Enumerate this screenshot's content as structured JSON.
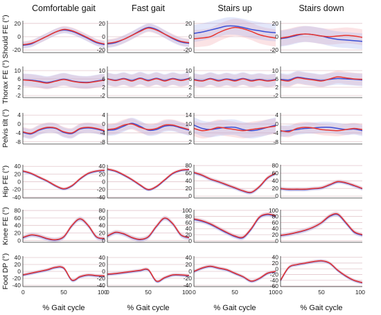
{
  "columns": [
    "Comfortable gait",
    "Fast gait",
    "Stairs up",
    "Stairs down"
  ],
  "rows": [
    "Should FE (°)",
    "Thorax FE (°)",
    "Pelvis tilt (°)",
    "Hip FE (°)",
    "Knee FE (°)",
    "Foot DP (°)"
  ],
  "xaxis_label": "% Gait cycle",
  "colors": {
    "series_a": "#e8352e",
    "series_b": "#3a4fd6",
    "band_a": "#f4a7ad",
    "band_b": "#a9b3f0",
    "grid": "#e2c6cc"
  },
  "chart_data": {
    "type": "line",
    "x_range": [
      0,
      100
    ],
    "x_ticks": [
      0,
      50,
      100
    ],
    "legend": "none",
    "grid": true,
    "panels": [
      {
        "row": 0,
        "col": 0,
        "yticks": [
          20,
          0,
          -20
        ],
        "ylim": [
          -24,
          24
        ],
        "x": [
          0,
          10,
          20,
          30,
          40,
          50,
          60,
          70,
          80,
          90,
          100
        ],
        "red": [
          -12,
          -10,
          -5,
          1,
          7,
          11,
          9,
          4,
          -2,
          -8,
          -11
        ],
        "blue": [
          -13,
          -11,
          -5,
          1,
          7,
          10,
          8,
          3,
          -3,
          -9,
          -12
        ],
        "sd": 5
      },
      {
        "row": 0,
        "col": 1,
        "yticks": [
          20,
          0,
          -20
        ],
        "ylim": [
          -24,
          24
        ],
        "x": [
          0,
          10,
          20,
          30,
          40,
          50,
          60,
          70,
          80,
          90,
          100
        ],
        "red": [
          -10,
          -8,
          -4,
          2,
          8,
          13,
          10,
          4,
          -2,
          -7,
          -9
        ],
        "blue": [
          -11,
          -9,
          -4,
          2,
          9,
          14,
          11,
          4,
          -3,
          -8,
          -10
        ],
        "sd": 6
      },
      {
        "row": 0,
        "col": 2,
        "yticks": [
          20,
          0,
          -20
        ],
        "ylim": [
          -24,
          24
        ],
        "x": [
          0,
          10,
          20,
          30,
          40,
          50,
          60,
          70,
          80,
          90,
          100
        ],
        "red": [
          -3,
          -2,
          0,
          6,
          11,
          14,
          12,
          8,
          3,
          0,
          -2
        ],
        "blue": [
          5,
          7,
          10,
          13,
          16,
          16,
          14,
          11,
          9,
          7,
          6
        ],
        "sd": 13
      },
      {
        "row": 0,
        "col": 3,
        "yticks": [
          20,
          0,
          -20
        ],
        "ylim": [
          -24,
          24
        ],
        "x": [
          0,
          10,
          20,
          30,
          40,
          50,
          60,
          70,
          80,
          90,
          100
        ],
        "red": [
          -2,
          0,
          3,
          4,
          3,
          1,
          0,
          1,
          2,
          1,
          -1
        ],
        "blue": [
          -3,
          -1,
          2,
          4,
          3,
          1,
          -2,
          -4,
          -5,
          -6,
          -7
        ],
        "sd": 12
      },
      {
        "row": 1,
        "col": 0,
        "yticks": [
          10,
          6,
          2,
          -2
        ],
        "ylim": [
          -3,
          12
        ],
        "x": [
          0,
          10,
          20,
          30,
          40,
          50,
          60,
          70,
          80,
          90,
          100
        ],
        "red": [
          5.5,
          5.2,
          4.6,
          4.0,
          4.9,
          5.7,
          4.9,
          4.3,
          4.2,
          4.8,
          5.4
        ],
        "blue": [
          5.6,
          5.4,
          4.9,
          4.3,
          5.1,
          5.9,
          5.1,
          4.5,
          4.4,
          5.0,
          5.6
        ],
        "sd": 3
      },
      {
        "row": 1,
        "col": 1,
        "yticks": [
          10,
          6,
          2,
          -2
        ],
        "ylim": [
          -3,
          12
        ],
        "x": [
          0,
          10,
          20,
          30,
          40,
          50,
          60,
          70,
          80,
          90,
          100
        ],
        "red": [
          6.0,
          5.2,
          6.0,
          5.0,
          6.2,
          5.1,
          6.1,
          5.0,
          6.0,
          5.2,
          6.1
        ],
        "blue": [
          6.1,
          5.4,
          6.2,
          5.3,
          6.4,
          5.4,
          6.3,
          5.3,
          6.2,
          5.5,
          6.3
        ],
        "sd": 3
      },
      {
        "row": 1,
        "col": 2,
        "yticks": [
          10,
          6,
          2,
          -2
        ],
        "ylim": [
          -3,
          12
        ],
        "x": [
          0,
          10,
          20,
          30,
          40,
          50,
          60,
          70,
          80,
          90,
          100
        ],
        "red": [
          5.5,
          5.0,
          6.0,
          5.0,
          5.8,
          5.0,
          6.0,
          5.0,
          5.6,
          5.0,
          5.5
        ],
        "blue": [
          5.8,
          5.2,
          6.2,
          5.3,
          6.0,
          5.4,
          6.2,
          5.3,
          5.8,
          5.2,
          5.7
        ],
        "sd": 3
      },
      {
        "row": 1,
        "col": 3,
        "yticks": [
          10,
          6,
          2,
          -2
        ],
        "ylim": [
          -3,
          12
        ],
        "x": [
          0,
          10,
          20,
          30,
          40,
          50,
          60,
          70,
          80,
          90,
          100
        ],
        "red": [
          5.5,
          5.0,
          6.5,
          6.0,
          5.5,
          5.0,
          6.0,
          7.0,
          6.5,
          6.0,
          5.8
        ],
        "blue": [
          5.8,
          5.5,
          6.8,
          6.3,
          5.8,
          5.3,
          5.8,
          6.2,
          6.0,
          5.8,
          5.5
        ],
        "sd": 3
      },
      {
        "row": 2,
        "col": 0,
        "yticks": [
          4,
          0,
          -4,
          -8
        ],
        "ylim": [
          -9,
          5
        ],
        "x": [
          0,
          10,
          20,
          30,
          40,
          50,
          60,
          70,
          80,
          90,
          100
        ],
        "red": [
          -3.5,
          -4.2,
          -2.5,
          -1.5,
          -1.8,
          -3.5,
          -4.0,
          -2.0,
          -1.5,
          -2.0,
          -3.0
        ],
        "blue": [
          -3.8,
          -4.5,
          -2.8,
          -1.8,
          -2.0,
          -3.8,
          -4.3,
          -2.3,
          -1.8,
          -2.3,
          -3.3
        ],
        "sd": 2.2
      },
      {
        "row": 2,
        "col": 1,
        "yticks": [
          4,
          0,
          -4,
          -8
        ],
        "ylim": [
          -9,
          5
        ],
        "x": [
          0,
          10,
          20,
          30,
          40,
          50,
          60,
          70,
          80,
          90,
          100
        ],
        "red": [
          -2.5,
          -2.0,
          -0.5,
          0.0,
          -1.5,
          -2.5,
          -2.0,
          -0.5,
          -0.5,
          -1.5,
          -2.5
        ],
        "blue": [
          -2.8,
          -2.5,
          -1.0,
          0.3,
          -1.0,
          -2.8,
          -2.5,
          -1.0,
          -0.8,
          -1.8,
          -2.8
        ],
        "sd": 2.5
      },
      {
        "row": 2,
        "col": 2,
        "yticks": [
          14,
          10,
          6,
          2
        ],
        "ylim": [
          1,
          15
        ],
        "x": [
          0,
          10,
          20,
          30,
          40,
          50,
          60,
          70,
          80,
          90,
          100
        ],
        "red": [
          8.0,
          7.0,
          7.5,
          8.5,
          8.0,
          7.5,
          7.0,
          7.5,
          8.0,
          8.5,
          9.0
        ],
        "blue": [
          9.5,
          8.0,
          7.5,
          8.0,
          8.5,
          8.5,
          7.5,
          7.0,
          7.5,
          8.5,
          9.5
        ],
        "sd": 3.5
      },
      {
        "row": 2,
        "col": 3,
        "yticks": [
          4,
          0,
          -4,
          -8
        ],
        "ylim": [
          -9,
          5
        ],
        "x": [
          0,
          10,
          20,
          30,
          40,
          50,
          60,
          70,
          80,
          90,
          100
        ],
        "red": [
          -3.0,
          -3.5,
          -2.0,
          -1.5,
          -1.8,
          -2.5,
          -2.8,
          -3.0,
          -2.5,
          -2.0,
          -2.5
        ],
        "blue": [
          -3.3,
          -3.0,
          -2.5,
          -2.0,
          -1.8,
          -1.5,
          -1.5,
          -2.0,
          -2.5,
          -2.3,
          -3.0
        ],
        "sd": 2.5
      },
      {
        "row": 3,
        "col": 0,
        "yticks": [
          40,
          20,
          0,
          -20,
          -40
        ],
        "ylim": [
          -42,
          44
        ],
        "x": [
          0,
          10,
          20,
          30,
          40,
          50,
          60,
          70,
          80,
          90,
          100
        ],
        "red": [
          28,
          22,
          12,
          2,
          -10,
          -18,
          -10,
          8,
          22,
          28,
          30
        ],
        "blue": [
          27,
          21,
          11,
          1,
          -11,
          -19,
          -11,
          7,
          21,
          27,
          29
        ],
        "sd": 4
      },
      {
        "row": 3,
        "col": 1,
        "yticks": [
          40,
          20,
          0,
          -20,
          -40
        ],
        "ylim": [
          -42,
          44
        ],
        "x": [
          0,
          10,
          20,
          30,
          40,
          50,
          60,
          70,
          80,
          90,
          100
        ],
        "red": [
          33,
          28,
          18,
          6,
          -8,
          -20,
          -12,
          5,
          22,
          30,
          32
        ],
        "blue": [
          32,
          27,
          17,
          5,
          -9,
          -21,
          -13,
          4,
          21,
          29,
          31
        ],
        "sd": 4
      },
      {
        "row": 3,
        "col": 2,
        "yticks": [
          80,
          60,
          40,
          20,
          0
        ],
        "ylim": [
          -5,
          82
        ],
        "x": [
          0,
          10,
          20,
          30,
          40,
          50,
          60,
          70,
          80,
          90,
          100
        ],
        "red": [
          62,
          55,
          45,
          38,
          30,
          22,
          14,
          10,
          25,
          48,
          60
        ],
        "blue": [
          61,
          54,
          44,
          37,
          29,
          21,
          13,
          9,
          24,
          47,
          59
        ],
        "sd": 5
      },
      {
        "row": 3,
        "col": 3,
        "yticks": [
          80,
          60,
          40,
          20,
          0
        ],
        "ylim": [
          -5,
          82
        ],
        "x": [
          0,
          10,
          20,
          30,
          40,
          50,
          60,
          70,
          80,
          90,
          100
        ],
        "red": [
          20,
          18,
          18,
          18,
          20,
          22,
          30,
          38,
          35,
          28,
          20
        ],
        "blue": [
          19,
          17,
          17,
          17,
          19,
          21,
          29,
          37,
          34,
          27,
          19
        ],
        "sd": 5
      },
      {
        "row": 4,
        "col": 0,
        "yticks": [
          80,
          60,
          40,
          20,
          0
        ],
        "ylim": [
          -5,
          82
        ],
        "x": [
          0,
          10,
          20,
          30,
          40,
          50,
          60,
          70,
          80,
          90,
          100
        ],
        "red": [
          8,
          15,
          12,
          5,
          2,
          10,
          40,
          58,
          40,
          10,
          5
        ],
        "blue": [
          7,
          14,
          11,
          4,
          1,
          9,
          39,
          57,
          39,
          9,
          4
        ],
        "sd": 6
      },
      {
        "row": 4,
        "col": 1,
        "yticks": [
          80,
          60,
          40,
          20,
          0
        ],
        "ylim": [
          -5,
          82
        ],
        "x": [
          0,
          10,
          20,
          30,
          40,
          50,
          60,
          70,
          80,
          90,
          100
        ],
        "red": [
          12,
          22,
          18,
          8,
          3,
          10,
          38,
          60,
          45,
          15,
          8
        ],
        "blue": [
          11,
          21,
          17,
          7,
          2,
          9,
          37,
          59,
          44,
          14,
          7
        ],
        "sd": 6
      },
      {
        "row": 4,
        "col": 2,
        "yticks": [
          100,
          80,
          60,
          40,
          20,
          0
        ],
        "ylim": [
          -5,
          102
        ],
        "x": [
          0,
          10,
          20,
          30,
          40,
          50,
          60,
          70,
          80,
          90,
          100
        ],
        "red": [
          72,
          66,
          56,
          42,
          28,
          16,
          12,
          40,
          78,
          88,
          82
        ],
        "blue": [
          70,
          64,
          54,
          40,
          26,
          14,
          10,
          38,
          76,
          86,
          80
        ],
        "sd": 7
      },
      {
        "row": 4,
        "col": 3,
        "yticks": [
          100,
          80,
          60,
          40,
          20,
          0
        ],
        "ylim": [
          -5,
          102
        ],
        "x": [
          0,
          10,
          20,
          30,
          40,
          50,
          60,
          70,
          80,
          90,
          100
        ],
        "red": [
          18,
          22,
          28,
          35,
          45,
          60,
          82,
          88,
          60,
          30,
          20
        ],
        "blue": [
          17,
          21,
          27,
          34,
          44,
          59,
          80,
          86,
          58,
          28,
          18
        ],
        "sd": 7
      },
      {
        "row": 5,
        "col": 0,
        "yticks": [
          40,
          20,
          0,
          -20,
          -40
        ],
        "ylim": [
          -44,
          44
        ],
        "x": [
          0,
          10,
          20,
          30,
          40,
          50,
          60,
          70,
          80,
          90,
          100
        ],
        "red": [
          -10,
          -5,
          0,
          5,
          12,
          10,
          -25,
          -15,
          -10,
          -12,
          -13
        ],
        "blue": [
          -11,
          -6,
          -1,
          4,
          11,
          9,
          -26,
          -16,
          -11,
          -13,
          -14
        ],
        "sd": 5
      },
      {
        "row": 5,
        "col": 1,
        "yticks": [
          40,
          20,
          0,
          -20,
          -40
        ],
        "ylim": [
          -44,
          44
        ],
        "x": [
          0,
          10,
          20,
          30,
          40,
          50,
          60,
          70,
          80,
          90,
          100
        ],
        "red": [
          -8,
          -6,
          -3,
          0,
          3,
          5,
          -28,
          -18,
          -10,
          -10,
          -12
        ],
        "blue": [
          -9,
          -7,
          -4,
          -1,
          2,
          4,
          -29,
          -19,
          -11,
          -11,
          -13
        ],
        "sd": 5
      },
      {
        "row": 5,
        "col": 2,
        "yticks": [
          40,
          20,
          0,
          -20,
          -40
        ],
        "ylim": [
          -44,
          44
        ],
        "x": [
          0,
          10,
          20,
          30,
          40,
          50,
          60,
          70,
          80,
          90,
          100
        ],
        "red": [
          0,
          10,
          15,
          10,
          5,
          -5,
          -15,
          -28,
          -20,
          -5,
          0
        ],
        "blue": [
          -1,
          9,
          14,
          9,
          4,
          -6,
          -16,
          -29,
          -21,
          -6,
          -1
        ],
        "sd": 5
      },
      {
        "row": 5,
        "col": 3,
        "yticks": [
          40,
          20,
          0,
          -20,
          -40,
          -60
        ],
        "ylim": [
          -62,
          44
        ],
        "x": [
          0,
          10,
          20,
          30,
          40,
          50,
          60,
          70,
          80,
          90,
          100
        ],
        "red": [
          -40,
          5,
          15,
          20,
          25,
          28,
          20,
          -5,
          -25,
          -40,
          -48
        ],
        "blue": [
          -41,
          4,
          14,
          19,
          24,
          27,
          19,
          -6,
          -26,
          -41,
          -49
        ],
        "sd": 6
      }
    ]
  }
}
